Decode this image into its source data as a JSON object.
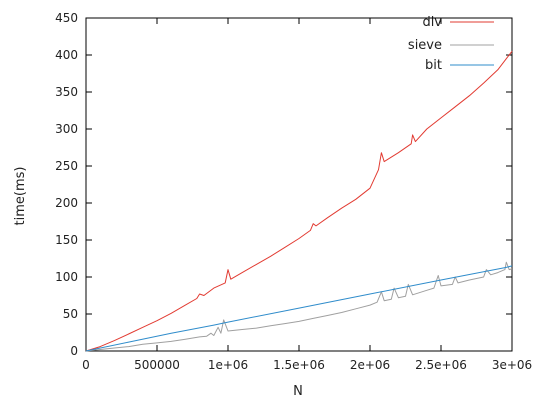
{
  "chart_data": {
    "type": "line",
    "xlabel": "N",
    "ylabel": "time(ms)",
    "xlim": [
      0,
      3000000
    ],
    "ylim": [
      0,
      450
    ],
    "x_ticks": [
      0,
      500000,
      1000000,
      1500000,
      2000000,
      2500000,
      3000000
    ],
    "x_tick_labels": [
      "0",
      "500000",
      "1e+06",
      "1.5e+06",
      "2e+06",
      "2.5e+06",
      "3e+06"
    ],
    "y_ticks": [
      0,
      50,
      100,
      150,
      200,
      250,
      300,
      350,
      400,
      450
    ],
    "y_tick_labels": [
      "0",
      "50",
      "100",
      "150",
      "200",
      "250",
      "300",
      "350",
      "400",
      "450"
    ],
    "grid": false,
    "legend_position": "top-right",
    "series": [
      {
        "name": "div",
        "color": "#e23b32",
        "points": [
          [
            0,
            0
          ],
          [
            100000,
            6
          ],
          [
            200000,
            14
          ],
          [
            300000,
            23
          ],
          [
            400000,
            32
          ],
          [
            500000,
            41
          ],
          [
            600000,
            51
          ],
          [
            700000,
            62
          ],
          [
            780000,
            71
          ],
          [
            800000,
            77
          ],
          [
            830000,
            75
          ],
          [
            900000,
            85
          ],
          [
            980000,
            92
          ],
          [
            1000000,
            110
          ],
          [
            1020000,
            97
          ],
          [
            1100000,
            106
          ],
          [
            1200000,
            117
          ],
          [
            1300000,
            128
          ],
          [
            1400000,
            140
          ],
          [
            1500000,
            152
          ],
          [
            1580000,
            163
          ],
          [
            1600000,
            172
          ],
          [
            1620000,
            169
          ],
          [
            1700000,
            180
          ],
          [
            1800000,
            193
          ],
          [
            1900000,
            205
          ],
          [
            2000000,
            220
          ],
          [
            2060000,
            245
          ],
          [
            2080000,
            268
          ],
          [
            2100000,
            256
          ],
          [
            2200000,
            268
          ],
          [
            2290000,
            280
          ],
          [
            2300000,
            292
          ],
          [
            2320000,
            283
          ],
          [
            2400000,
            300
          ],
          [
            2500000,
            315
          ],
          [
            2600000,
            330
          ],
          [
            2700000,
            345
          ],
          [
            2800000,
            362
          ],
          [
            2900000,
            380
          ],
          [
            2960000,
            395
          ],
          [
            3000000,
            405
          ]
        ]
      },
      {
        "name": "sieve",
        "color": "#a0a0a0",
        "points": [
          [
            0,
            0
          ],
          [
            100000,
            2
          ],
          [
            200000,
            4
          ],
          [
            300000,
            6
          ],
          [
            400000,
            9
          ],
          [
            500000,
            11
          ],
          [
            600000,
            13
          ],
          [
            700000,
            16
          ],
          [
            800000,
            19
          ],
          [
            850000,
            20
          ],
          [
            880000,
            24
          ],
          [
            900000,
            21
          ],
          [
            930000,
            32
          ],
          [
            950000,
            24
          ],
          [
            970000,
            42
          ],
          [
            1000000,
            27
          ],
          [
            1100000,
            29
          ],
          [
            1200000,
            31
          ],
          [
            1300000,
            34
          ],
          [
            1400000,
            37
          ],
          [
            1500000,
            40
          ],
          [
            1600000,
            44
          ],
          [
            1700000,
            48
          ],
          [
            1800000,
            52
          ],
          [
            1900000,
            57
          ],
          [
            2000000,
            62
          ],
          [
            2050000,
            66
          ],
          [
            2080000,
            80
          ],
          [
            2100000,
            68
          ],
          [
            2150000,
            70
          ],
          [
            2170000,
            85
          ],
          [
            2200000,
            72
          ],
          [
            2250000,
            74
          ],
          [
            2270000,
            90
          ],
          [
            2300000,
            76
          ],
          [
            2400000,
            82
          ],
          [
            2450000,
            85
          ],
          [
            2480000,
            102
          ],
          [
            2500000,
            88
          ],
          [
            2580000,
            90
          ],
          [
            2600000,
            100
          ],
          [
            2620000,
            92
          ],
          [
            2700000,
            96
          ],
          [
            2800000,
            100
          ],
          [
            2820000,
            110
          ],
          [
            2850000,
            103
          ],
          [
            2900000,
            106
          ],
          [
            2950000,
            110
          ],
          [
            2960000,
            120
          ],
          [
            2980000,
            110
          ],
          [
            3000000,
            111
          ]
        ]
      },
      {
        "name": "bit",
        "color": "#2f8ccb",
        "points": [
          [
            0,
            0
          ],
          [
            300000,
            12
          ],
          [
            600000,
            24
          ],
          [
            900000,
            35
          ],
          [
            1000000,
            39
          ],
          [
            1500000,
            58
          ],
          [
            2000000,
            77
          ],
          [
            2500000,
            96
          ],
          [
            2800000,
            107
          ],
          [
            2960000,
            113
          ],
          [
            3000000,
            115
          ]
        ]
      }
    ]
  }
}
